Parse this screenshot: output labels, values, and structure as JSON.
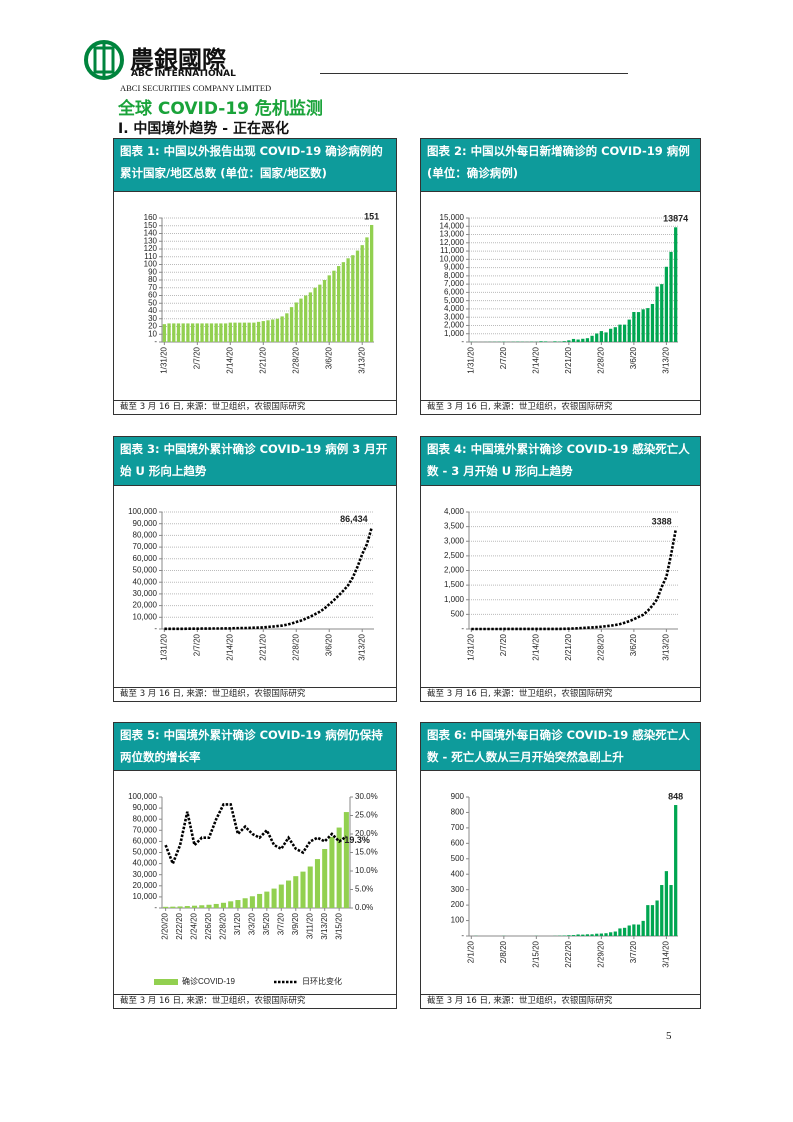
{
  "header": {
    "logo_cn": "農銀國際",
    "logo_en": "ABC INTERNATIONAL",
    "company": "ABCI SECURITIES COMPANY LIMITED"
  },
  "title": "全球 COVID-19 危机监测",
  "section": "I. 中国境外趋势 - 正在恶化",
  "page_number": "5",
  "chart_data": [
    {
      "type": "bar",
      "title": "图表 1: 中国以外报告出现 COVID-19 确诊病例的累计国家/地区总数 (单位：国家/地区数)",
      "source": "截至 3 月 16 日, 来源：世卫组织，农银国际研究",
      "categories": [
        "1/31/20",
        null,
        null,
        null,
        null,
        null,
        null,
        "2/7/20",
        null,
        null,
        null,
        null,
        null,
        null,
        "2/14/20",
        null,
        null,
        null,
        null,
        null,
        null,
        "2/21/20",
        null,
        null,
        null,
        null,
        null,
        null,
        "2/28/20",
        null,
        null,
        null,
        null,
        null,
        null,
        "3/6/20",
        null,
        null,
        null,
        null,
        null,
        null,
        "3/13/20",
        null,
        null
      ],
      "values": [
        23,
        24,
        24,
        24,
        24,
        24,
        24,
        24,
        24,
        24,
        24,
        24,
        24,
        24,
        25,
        25,
        25,
        25,
        25,
        25,
        26,
        27,
        28,
        29,
        30,
        33,
        37,
        45,
        51,
        56,
        60,
        64,
        70,
        74,
        80,
        86,
        92,
        98,
        103,
        108,
        112,
        118,
        125,
        135,
        151
      ],
      "color": "#92d050",
      "ylim": [
        0,
        160
      ],
      "yticks": [
        {
          "value": 0,
          "label": "-"
        },
        10,
        20,
        30,
        40,
        50,
        60,
        70,
        80,
        90,
        100,
        110,
        120,
        130,
        140,
        150,
        160
      ],
      "grid": true
    },
    {
      "type": "bar",
      "title": "图表 2: 中国以外每日新增确诊的 COVID-19 病例 (单位：确诊病例)",
      "source": "截至 3 月 16 日, 来源：世卫组织，农银国际研究",
      "categories": [
        "1/31/20",
        null,
        null,
        null,
        null,
        null,
        null,
        "2/7/20",
        null,
        null,
        null,
        null,
        null,
        null,
        "2/14/20",
        null,
        null,
        null,
        null,
        null,
        null,
        "2/21/20",
        null,
        null,
        null,
        null,
        null,
        null,
        "2/28/20",
        null,
        null,
        null,
        null,
        null,
        null,
        "3/6/20",
        null,
        null,
        null,
        null,
        null,
        null,
        "3/13/20",
        null,
        null
      ],
      "values": [
        20,
        10,
        5,
        10,
        20,
        25,
        30,
        40,
        20,
        30,
        40,
        30,
        20,
        40,
        30,
        90,
        70,
        10,
        80,
        50,
        100,
        200,
        370,
        300,
        390,
        460,
        750,
        1030,
        1320,
        1160,
        1600,
        1790,
        2100,
        2100,
        2710,
        3630,
        3620,
        3950,
        4100,
        4600,
        6700,
        7000,
        9100,
        10900,
        13874
      ],
      "color": "#00a651",
      "ylim": [
        0,
        15000
      ],
      "yticks": [
        {
          "value": 0,
          "label": "-"
        },
        {
          "value": 1000,
          "label": "1,000"
        },
        {
          "value": 2000,
          "label": "2,000"
        },
        {
          "value": 3000,
          "label": "3,000"
        },
        {
          "value": 4000,
          "label": "4,000"
        },
        {
          "value": 5000,
          "label": "5,000"
        },
        {
          "value": 6000,
          "label": "6,000"
        },
        {
          "value": 7000,
          "label": "7,000"
        },
        {
          "value": 8000,
          "label": "8,000"
        },
        {
          "value": 9000,
          "label": "9,000"
        },
        {
          "value": 10000,
          "label": "10,000"
        },
        {
          "value": 11000,
          "label": "11,000"
        },
        {
          "value": 12000,
          "label": "12,000"
        },
        {
          "value": 13000,
          "label": "13,000"
        },
        {
          "value": 14000,
          "label": "14,000"
        },
        {
          "value": 15000,
          "label": "15,000"
        }
      ],
      "grid": true
    },
    {
      "type": "line",
      "title": "图表 3: 中国境外累计确诊 COVID-19 病例 3 月开始 U 形向上趋势",
      "source": "截至 3 月 16 日, 来源：世卫组织，农银国际研究",
      "categories": [
        "1/31/20",
        null,
        null,
        null,
        null,
        null,
        null,
        "2/7/20",
        null,
        null,
        null,
        null,
        null,
        null,
        "2/14/20",
        null,
        null,
        null,
        null,
        null,
        null,
        "2/21/20",
        null,
        null,
        null,
        null,
        null,
        null,
        "2/28/20",
        null,
        null,
        null,
        null,
        null,
        null,
        "3/6/20",
        null,
        null,
        null,
        null,
        null,
        null,
        "3/13/20",
        null,
        null
      ],
      "values": [
        132,
        146,
        153,
        159,
        191,
        216,
        270,
        288,
        302,
        319,
        395,
        441,
        447,
        505,
        526,
        683,
        794,
        804,
        924,
        1073,
        1200,
        1402,
        1769,
        2069,
        2459,
        2918,
        3664,
        4691,
        6009,
        7169,
        8774,
        10566,
        12668,
        14768,
        17481,
        21110,
        24727,
        28674,
        32778,
        37371,
        44067,
        53158,
        64000,
        72469,
        86434
      ],
      "value_labels": [
        null,
        null,
        null,
        null,
        null,
        null,
        null,
        null,
        null,
        null,
        null,
        null,
        null,
        null,
        null,
        null,
        null,
        null,
        null,
        null,
        null,
        null,
        null,
        null,
        null,
        null,
        null,
        null,
        null,
        null,
        null,
        null,
        null,
        null,
        null,
        null,
        null,
        null,
        null,
        null,
        null,
        null,
        null,
        null,
        "86,434"
      ],
      "color": "#000000",
      "ylim": [
        0,
        100000
      ],
      "yticks": [
        {
          "value": 0,
          "label": "-"
        },
        {
          "value": 10000,
          "label": "10,000"
        },
        {
          "value": 20000,
          "label": "20,000"
        },
        {
          "value": 30000,
          "label": "30,000"
        },
        {
          "value": 40000,
          "label": "40,000"
        },
        {
          "value": 50000,
          "label": "50,000"
        },
        {
          "value": 60000,
          "label": "60,000"
        },
        {
          "value": 70000,
          "label": "70,000"
        },
        {
          "value": 80000,
          "label": "80,000"
        },
        {
          "value": 90000,
          "label": "90,000"
        },
        {
          "value": 100000,
          "label": "100,000"
        }
      ],
      "grid": true
    },
    {
      "type": "line",
      "title": "图表 4: 中国境外累计确诊 COVID-19 感染死亡人数 - 3 月开始 U 形向上趋势",
      "source": "截至 3 月 16 日, 来源：世卫组织，农银国际研究",
      "categories": [
        "1/31/20",
        null,
        null,
        null,
        null,
        null,
        null,
        "2/7/20",
        null,
        null,
        null,
        null,
        null,
        null,
        "2/14/20",
        null,
        null,
        null,
        null,
        null,
        null,
        "2/21/20",
        null,
        null,
        null,
        null,
        null,
        null,
        "2/28/20",
        null,
        null,
        null,
        null,
        null,
        null,
        "3/6/20",
        null,
        null,
        null,
        null,
        null,
        null,
        "3/13/20",
        null,
        null
      ],
      "values": [
        0,
        1,
        1,
        1,
        1,
        1,
        1,
        2,
        2,
        2,
        2,
        2,
        2,
        2,
        3,
        3,
        4,
        5,
        5,
        5,
        8,
        11,
        16,
        23,
        33,
        43,
        53,
        64,
        79,
        95,
        113,
        137,
        166,
        214,
        267,
        335,
        410,
        484,
        621,
        799,
        1018,
        1440,
        1783,
        2531,
        3388
      ],
      "color": "#000000",
      "ylim": [
        0,
        4000
      ],
      "yticks": [
        {
          "value": 0,
          "label": "-"
        },
        500,
        {
          "value": 1000,
          "label": "1,000"
        },
        {
          "value": 1500,
          "label": "1,500"
        },
        {
          "value": 2000,
          "label": "2,000"
        },
        {
          "value": 2500,
          "label": "2,500"
        },
        {
          "value": 3000,
          "label": "3,000"
        },
        {
          "value": 3500,
          "label": "3,500"
        },
        {
          "value": 4000,
          "label": "4,000"
        }
      ],
      "grid": true
    },
    {
      "type": "combo",
      "title": "图表 5: 中国境外累计确诊 COVID-19 病例仍保持两位数的增长率",
      "source": "截至 3 月 16 日, 来源：世卫组织，农银国际研究",
      "categories": [
        "2/20/20",
        null,
        "2/22/20",
        null,
        "2/24/20",
        null,
        "2/26/20",
        null,
        "2/28/20",
        null,
        "3/1/20",
        null,
        "3/3/20",
        null,
        "3/5/20",
        null,
        "3/7/20",
        null,
        "3/9/20",
        null,
        "3/11/20",
        null,
        "3/13/20",
        null,
        "3/15/20",
        null
      ],
      "series": [
        {
          "name": "确诊COVID-19",
          "color": "#92d050",
          "values": [
            1073,
            1200,
            1402,
            1769,
            2069,
            2459,
            2918,
            3664,
            4691,
            6009,
            7169,
            8774,
            10566,
            12668,
            14768,
            17481,
            21110,
            24727,
            28674,
            32778,
            37371,
            44067,
            53158,
            64000,
            72469,
            86434
          ]
        },
        {
          "name": "日环比变化",
          "color": "#000000",
          "axis": "y2",
          "values": [
            17,
            12,
            17,
            26,
            17,
            19,
            19,
            24,
            28,
            28,
            20,
            22,
            20,
            19,
            21,
            17,
            16,
            19,
            16,
            15,
            18,
            19,
            18,
            20,
            18,
            19.3
          ],
          "value_labels": [
            null,
            null,
            null,
            null,
            null,
            null,
            null,
            null,
            null,
            null,
            null,
            null,
            null,
            null,
            null,
            null,
            null,
            null,
            null,
            null,
            null,
            null,
            null,
            null,
            null,
            "19.3%"
          ]
        }
      ],
      "ylim": [
        0,
        100000
      ],
      "yticks": [
        {
          "value": 0,
          "label": "-"
        },
        {
          "value": 10000,
          "label": "10,000"
        },
        {
          "value": 20000,
          "label": "20,000"
        },
        {
          "value": 30000,
          "label": "30,000"
        },
        {
          "value": 40000,
          "label": "40,000"
        },
        {
          "value": 50000,
          "label": "50,000"
        },
        {
          "value": 60000,
          "label": "60,000"
        },
        {
          "value": 70000,
          "label": "70,000"
        },
        {
          "value": 80000,
          "label": "80,000"
        },
        {
          "value": 90000,
          "label": "90,000"
        },
        {
          "value": 100000,
          "label": "100,000"
        }
      ],
      "y2lim": [
        0,
        30
      ],
      "y2ticks": [
        {
          "value": 0,
          "label": "0.0%"
        },
        {
          "value": 5,
          "label": "5.0%"
        },
        {
          "value": 10,
          "label": "10.0%"
        },
        {
          "value": 15,
          "label": "15.0%"
        },
        {
          "value": 20,
          "label": "20.0%"
        },
        {
          "value": 25,
          "label": "25.0%"
        },
        {
          "value": 30,
          "label": "30.0%"
        }
      ],
      "grid": false
    },
    {
      "type": "bar",
      "title": "图表 6: 中国境外每日确诊 COVID-19 感染死亡人数 - 死亡人数从三月开始突然急剧上升",
      "source": "截至 3 月 16 日, 来源：世卫组织，农银国际研究",
      "categories": [
        "2/1/20",
        null,
        null,
        null,
        null,
        null,
        null,
        "2/8/20",
        null,
        null,
        null,
        null,
        null,
        null,
        "2/15/20",
        null,
        null,
        null,
        null,
        null,
        null,
        "2/22/20",
        null,
        null,
        null,
        null,
        null,
        null,
        "2/29/20",
        null,
        null,
        null,
        null,
        null,
        null,
        "3/7/20",
        null,
        null,
        null,
        null,
        null,
        null,
        "3/14/20",
        null,
        null
      ],
      "values": [
        0,
        1,
        0,
        0,
        0,
        0,
        0,
        1,
        0,
        0,
        0,
        0,
        0,
        0,
        1,
        0,
        0,
        0,
        1,
        2,
        3,
        5,
        6,
        10,
        9,
        11,
        11,
        15,
        16,
        18,
        24,
        29,
        49,
        53,
        68,
        75,
        74,
        98,
        200,
        200,
        230,
        330,
        420,
        330,
        848
      ],
      "color": "#00a651",
      "ylim": [
        0,
        900
      ],
      "yticks": [
        {
          "value": 0,
          "label": "-"
        },
        100,
        200,
        300,
        400,
        500,
        600,
        700,
        800,
        900
      ],
      "grid": false
    }
  ]
}
